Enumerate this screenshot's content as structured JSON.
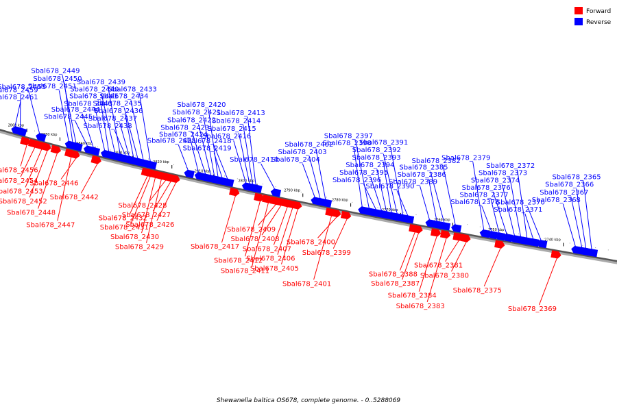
{
  "legend": {
    "forward_label": "Forward",
    "reverse_label": "Reverse",
    "forward_color": "#ff0000",
    "reverse_color": "#0000ff"
  },
  "caption": "Shewanella baltica OS678, complete genome. - 0..5288069",
  "ticks": [
    "2860 kbp",
    "2850 kbp",
    "2840 kbp",
    "2830 kbp",
    "2820 kbp",
    "2810 kbp",
    "2800 kbp",
    "2790 kbp",
    "2780 kbp",
    "2770 kbp",
    "2760 kbp",
    "2750 kbp",
    "2740 kbp"
  ],
  "genes": [
    {
      "id": "Sbal678_2461",
      "strand": "reverse",
      "pos": 0.043
    },
    {
      "id": "Sbal678_2459",
      "strand": "reverse",
      "pos": 0.055
    },
    {
      "id": "Sbal678_2455",
      "strand": "reverse",
      "pos": 0.098
    },
    {
      "id": "Sbal678_2451",
      "strand": "reverse",
      "pos": 0.16
    },
    {
      "id": "Sbal678_2450",
      "strand": "reverse",
      "pos": 0.168
    },
    {
      "id": "Sbal678_2449",
      "strand": "reverse",
      "pos": 0.175
    },
    {
      "id": "Sbal678_2445",
      "strand": "reverse",
      "pos": 0.198
    },
    {
      "id": "Sbal678_2444",
      "strand": "reverse",
      "pos": 0.21
    },
    {
      "id": "Sbal678_2443",
      "strand": "reverse",
      "pos": 0.232
    },
    {
      "id": "Sbal678_2441",
      "strand": "reverse",
      "pos": 0.24
    },
    {
      "id": "Sbal678_2440",
      "strand": "reverse",
      "pos": 0.252
    },
    {
      "id": "Sbal678_2439",
      "strand": "reverse",
      "pos": 0.262
    },
    {
      "id": "Sbal678_2438",
      "strand": "reverse",
      "pos": 0.272
    },
    {
      "id": "Sbal678_2437",
      "strand": "reverse",
      "pos": 0.279
    },
    {
      "id": "Sbal678_2436",
      "strand": "reverse",
      "pos": 0.287
    },
    {
      "id": "Sbal678_2435",
      "strand": "reverse",
      "pos": 0.295
    },
    {
      "id": "Sbal678_2434",
      "strand": "reverse",
      "pos": 0.305
    },
    {
      "id": "Sbal678_2433",
      "strand": "reverse",
      "pos": 0.318
    },
    {
      "id": "Sbal678_2425",
      "strand": "reverse",
      "pos": 0.385
    },
    {
      "id": "Sbal678_2424",
      "strand": "reverse",
      "pos": 0.403
    },
    {
      "id": "Sbal678_2423",
      "strand": "reverse",
      "pos": 0.415
    },
    {
      "id": "Sbal678_2422",
      "strand": "reverse",
      "pos": 0.424
    },
    {
      "id": "Sbal678_2421",
      "strand": "reverse",
      "pos": 0.43
    },
    {
      "id": "Sbal678_2420",
      "strand": "reverse",
      "pos": 0.436
    },
    {
      "id": "Sbal678_2419",
      "strand": "reverse",
      "pos": 0.443
    },
    {
      "id": "Sbal678_2418",
      "strand": "reverse",
      "pos": 0.452
    },
    {
      "id": "Sbal678_2416",
      "strand": "reverse",
      "pos": 0.482
    },
    {
      "id": "Sbal678_2415",
      "strand": "reverse",
      "pos": 0.488
    },
    {
      "id": "Sbal678_2414",
      "strand": "reverse",
      "pos": 0.493
    },
    {
      "id": "Sbal678_2413",
      "strand": "reverse",
      "pos": 0.498
    },
    {
      "id": "Sbal678_2410",
      "strand": "reverse",
      "pos": 0.528
    },
    {
      "id": "Sbal678_2404",
      "strand": "reverse",
      "pos": 0.59
    },
    {
      "id": "Sbal678_2403",
      "strand": "reverse",
      "pos": 0.598
    },
    {
      "id": "Sbal678_2402",
      "strand": "reverse",
      "pos": 0.606
    },
    {
      "id": "Sbal678_2398",
      "strand": "reverse",
      "pos": 0.66
    },
    {
      "id": "Sbal678_2397",
      "strand": "reverse",
      "pos": 0.67
    },
    {
      "id": "Sbal678_2396",
      "strand": "reverse",
      "pos": 0.68
    },
    {
      "id": "Sbal678_2395",
      "strand": "reverse",
      "pos": 0.688
    },
    {
      "id": "Sbal678_2394",
      "strand": "reverse",
      "pos": 0.695
    },
    {
      "id": "Sbal678_2393",
      "strand": "reverse",
      "pos": 0.702
    },
    {
      "id": "Sbal678_2392",
      "strand": "reverse",
      "pos": 0.71
    },
    {
      "id": "Sbal678_2391",
      "strand": "reverse",
      "pos": 0.718
    },
    {
      "id": "Sbal678_2390",
      "strand": "reverse",
      "pos": 0.725
    },
    {
      "id": "Sbal678_2389",
      "strand": "reverse",
      "pos": 0.755
    },
    {
      "id": "Sbal678_2386",
      "strand": "reverse",
      "pos": 0.765
    },
    {
      "id": "Sbal678_2385",
      "strand": "reverse",
      "pos": 0.775
    },
    {
      "id": "Sbal678_2382",
      "strand": "reverse",
      "pos": 0.79
    },
    {
      "id": "Sbal678_2379",
      "strand": "reverse",
      "pos": 0.828
    },
    {
      "id": "Sbal678_2378",
      "strand": "reverse",
      "pos": 0.838
    },
    {
      "id": "Sbal678_2377",
      "strand": "reverse",
      "pos": 0.848
    },
    {
      "id": "Sbal678_2376",
      "strand": "reverse",
      "pos": 0.858
    },
    {
      "id": "Sbal678_2374",
      "strand": "reverse",
      "pos": 0.868
    },
    {
      "id": "Sbal678_2373",
      "strand": "reverse",
      "pos": 0.876
    },
    {
      "id": "Sbal678_2372",
      "strand": "reverse",
      "pos": 0.884
    },
    {
      "id": "Sbal678_2371",
      "strand": "reverse",
      "pos": 0.892
    },
    {
      "id": "Sbal678_2370",
      "strand": "reverse",
      "pos": 0.902
    },
    {
      "id": "Sbal678_2368",
      "strand": "reverse",
      "pos": 0.945
    },
    {
      "id": "Sbal678_2367",
      "strand": "reverse",
      "pos": 0.953
    },
    {
      "id": "Sbal678_2366",
      "strand": "reverse",
      "pos": 0.958
    },
    {
      "id": "Sbal678_2365",
      "strand": "reverse",
      "pos": 0.965
    },
    {
      "id": "Sbal678_2456",
      "strand": "forward",
      "pos": 0.07
    },
    {
      "id": "Sbal678_2454",
      "strand": "forward",
      "pos": 0.088
    },
    {
      "id": "Sbal678_2453",
      "strand": "forward",
      "pos": 0.103
    },
    {
      "id": "Sbal678_2452",
      "strand": "forward",
      "pos": 0.115
    },
    {
      "id": "Sbal678_2448",
      "strand": "forward",
      "pos": 0.136
    },
    {
      "id": "Sbal678_2447",
      "strand": "forward",
      "pos": 0.165
    },
    {
      "id": "Sbal678_2446",
      "strand": "forward",
      "pos": 0.175
    },
    {
      "id": "Sbal678_2442",
      "strand": "forward",
      "pos": 0.218
    },
    {
      "id": "Sbal678_2432",
      "strand": "forward",
      "pos": 0.313
    },
    {
      "id": "Sbal678_2431",
      "strand": "forward",
      "pos": 0.318
    },
    {
      "id": "Sbal678_2430",
      "strand": "forward",
      "pos": 0.327
    },
    {
      "id": "Sbal678_2429",
      "strand": "forward",
      "pos": 0.338
    },
    {
      "id": "Sbal678_2428",
      "strand": "forward",
      "pos": 0.346
    },
    {
      "id": "Sbal678_2427",
      "strand": "forward",
      "pos": 0.355
    },
    {
      "id": "Sbal678_2426",
      "strand": "forward",
      "pos": 0.364
    },
    {
      "id": "Sbal678_2417",
      "strand": "forward",
      "pos": 0.465
    },
    {
      "id": "Sbal678_2412",
      "strand": "forward",
      "pos": 0.505
    },
    {
      "id": "Sbal678_2411",
      "strand": "forward",
      "pos": 0.518
    },
    {
      "id": "Sbal678_2409",
      "strand": "forward",
      "pos": 0.53
    },
    {
      "id": "Sbal678_2408",
      "strand": "forward",
      "pos": 0.538
    },
    {
      "id": "Sbal678_2407",
      "strand": "forward",
      "pos": 0.548
    },
    {
      "id": "Sbal678_2406",
      "strand": "forward",
      "pos": 0.556
    },
    {
      "id": "Sbal678_2405",
      "strand": "forward",
      "pos": 0.564
    },
    {
      "id": "Sbal678_2401",
      "strand": "forward",
      "pos": 0.615
    },
    {
      "id": "Sbal678_2400",
      "strand": "forward",
      "pos": 0.623
    },
    {
      "id": "Sbal678_2399",
      "strand": "forward",
      "pos": 0.638
    },
    {
      "id": "Sbal678_2388",
      "strand": "forward",
      "pos": 0.735
    },
    {
      "id": "Sbal678_2387",
      "strand": "forward",
      "pos": 0.74
    },
    {
      "id": "Sbal678_2384",
      "strand": "forward",
      "pos": 0.765
    },
    {
      "id": "Sbal678_2383",
      "strand": "forward",
      "pos": 0.778
    },
    {
      "id": "Sbal678_2381",
      "strand": "forward",
      "pos": 0.795
    },
    {
      "id": "Sbal678_2380",
      "strand": "forward",
      "pos": 0.805
    },
    {
      "id": "Sbal678_2375",
      "strand": "forward",
      "pos": 0.85
    },
    {
      "id": "Sbal678_2369",
      "strand": "forward",
      "pos": 0.922
    }
  ]
}
